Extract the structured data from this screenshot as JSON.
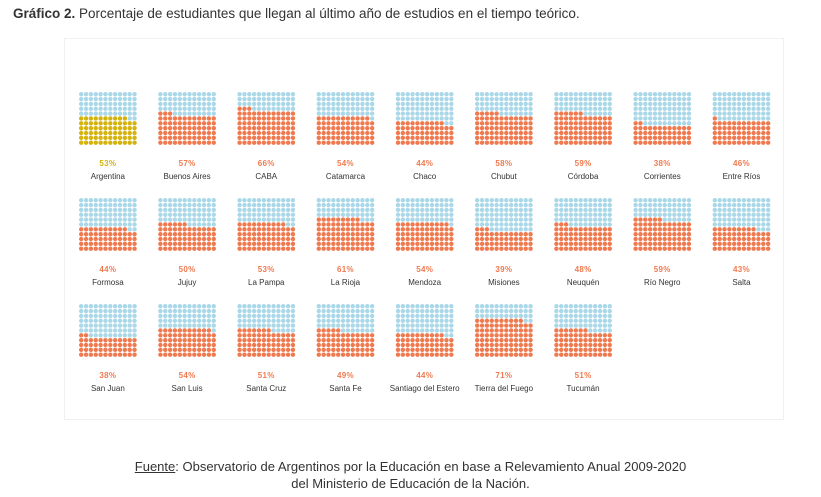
{
  "title": {
    "label": "Gráfico 2.",
    "text": "Porcentaje de estudiantes que llegan al último año de estudios en el tiempo teórico."
  },
  "colors": {
    "empty": "#aad8e8",
    "filled": "#f07a50",
    "highlight": "#d4b30f",
    "text": "#333333"
  },
  "chart_data": {
    "type": "waffle",
    "title": "Porcentaje de estudiantes que llegan al último año de estudios en el tiempo teórico.",
    "unit": "%",
    "categories": [
      "Argentina",
      "Buenos Aires",
      "CABA",
      "Catamarca",
      "Chaco",
      "Chubut",
      "Córdoba",
      "Corrientes",
      "Entre Ríos",
      "Formosa",
      "Jujuy",
      "La Pampa",
      "La Rioja",
      "Mendoza",
      "Misiones",
      "Neuquén",
      "Río Negro",
      "Salta",
      "San Juan",
      "San Luis",
      "Santa Cruz",
      "Santa Fe",
      "Santiago del Estero",
      "Tierra del Fuego",
      "Tucumán"
    ],
    "values": [
      53,
      57,
      66,
      54,
      44,
      58,
      59,
      38,
      46,
      44,
      50,
      53,
      61,
      54,
      39,
      48,
      59,
      43,
      38,
      54,
      51,
      49,
      44,
      71,
      51
    ],
    "labels": [
      "53%",
      "57%",
      "66%",
      "54%",
      "44%",
      "58%",
      "59%",
      "38%",
      "46%",
      "44%",
      "50%",
      "53%",
      "61%",
      "54%",
      "39%",
      "48%",
      "59%",
      "43%",
      "38%",
      "54%",
      "51%",
      "49%",
      "44%",
      "71%",
      "51%"
    ],
    "highlighted": "Argentina"
  },
  "source": {
    "label": "Fuente",
    "line1": ": Observatorio de Argentinos por la Educación en base a Relevamiento Anual 2009-2020",
    "line2": "del Ministerio de Educación de la Nación."
  }
}
